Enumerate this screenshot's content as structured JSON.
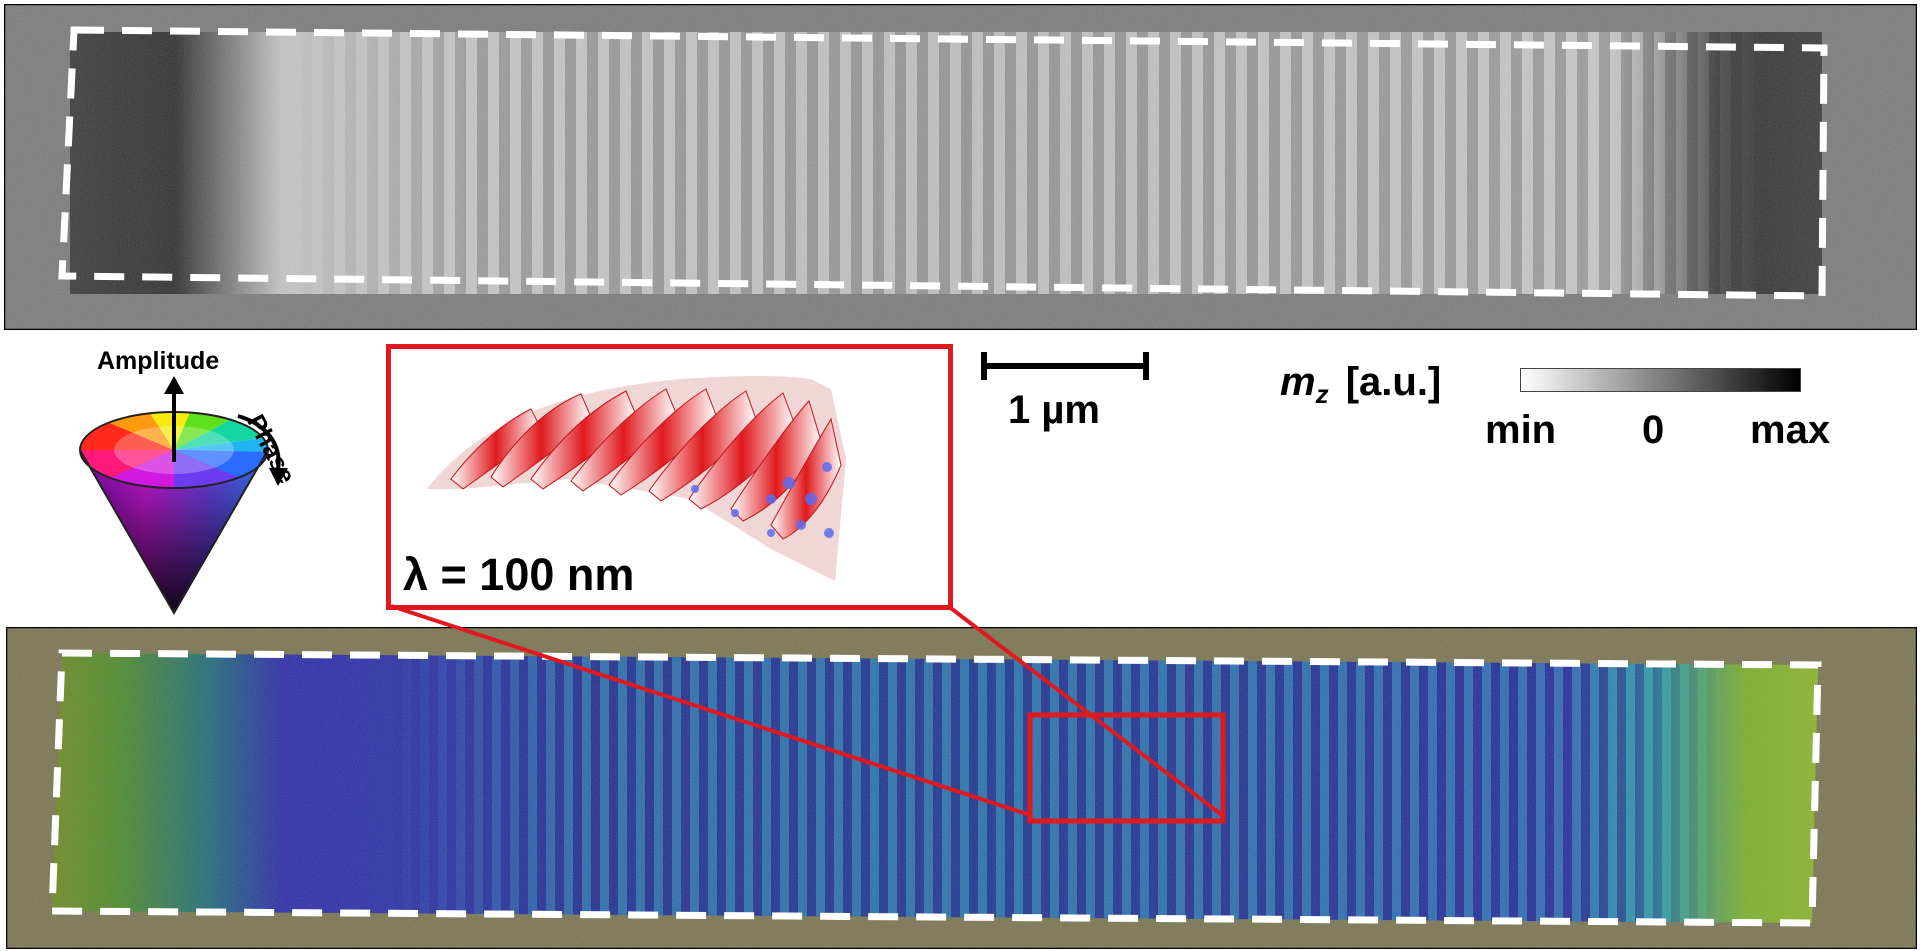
{
  "scalebar": {
    "label": "1 µm"
  },
  "colorbar": {
    "title_symbol": "m",
    "title_subscript": "z",
    "title_unit": "[a.u.]",
    "tick_labels": [
      "min",
      "0",
      "max"
    ],
    "gradient_start": "#ffffff",
    "gradient_end": "#000000"
  },
  "phase_legend": {
    "amplitude_label": "Amplitude",
    "phase_label": "Phase"
  },
  "inset": {
    "wavelength_label": "λ = 100 nm",
    "frame_color": "#e0191e",
    "surface_colors": [
      "#e0191e",
      "#ffffff",
      "#5a6cf0"
    ]
  },
  "panels": {
    "top": {
      "roi_color": "#ffffff"
    },
    "bottom": {
      "roi_color": "#ffffff",
      "zoom_box_color": "#e0191e"
    }
  }
}
